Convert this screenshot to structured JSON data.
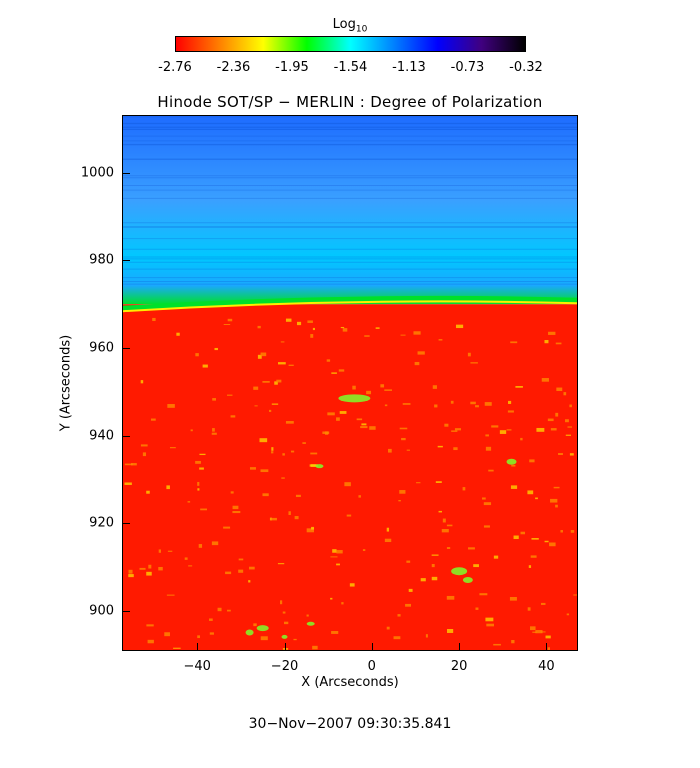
{
  "colorbar": {
    "title": "Log",
    "title_sub": "10",
    "ticks": [
      "-2.76",
      "-2.36",
      "-1.95",
      "-1.54",
      "-1.13",
      "-0.73",
      "-0.32"
    ],
    "gradient_colors": [
      "#ff0000",
      "#ff8000",
      "#ffff00",
      "#00ff00",
      "#00ffff",
      "#0080ff",
      "#0000ff",
      "#400080",
      "#000000"
    ]
  },
  "plot": {
    "title": "Hinode SOT/SP − MERLIN : Degree of Polarization",
    "xlabel": "X (Arcseconds)",
    "ylabel": "Y (Arcseconds)",
    "xlim": [
      -57,
      47
    ],
    "ylim": [
      891,
      1013
    ],
    "x_ticks": [
      "−40",
      "−20",
      "0",
      "20",
      "40"
    ],
    "x_tick_values": [
      -40,
      -20,
      0,
      20,
      40
    ],
    "y_ticks": [
      "900",
      "920",
      "940",
      "960",
      "980",
      "1000"
    ],
    "y_tick_values": [
      900,
      920,
      940,
      960,
      980,
      1000
    ],
    "limb_y": 970,
    "colors": {
      "disk": "#ff1a00",
      "limb": "#00e02a",
      "corona_low": "#00c8ff",
      "corona_high": "#1e6cff"
    }
  },
  "timestamp": "30−Nov−2007 09:30:35.841"
}
